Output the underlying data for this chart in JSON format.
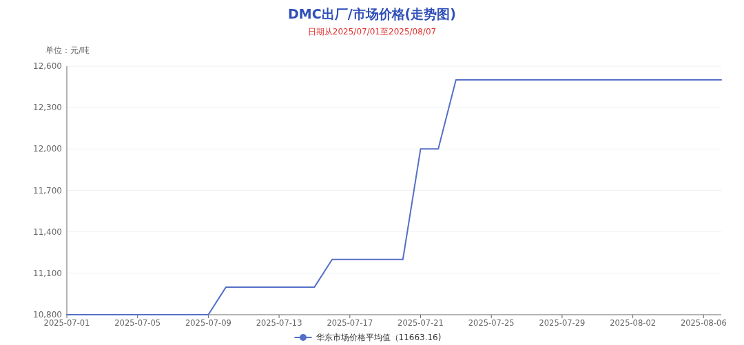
{
  "chart_data": {
    "type": "line",
    "title": "DMC出厂/市场价格(走势图)",
    "subtitle": "日期从2025/07/01至2025/08/07",
    "ylabel": "单位：元/吨",
    "x": [
      "2025-07-01",
      "2025-07-02",
      "2025-07-03",
      "2025-07-04",
      "2025-07-05",
      "2025-07-06",
      "2025-07-07",
      "2025-07-08",
      "2025-07-09",
      "2025-07-10",
      "2025-07-11",
      "2025-07-12",
      "2025-07-13",
      "2025-07-14",
      "2025-07-15",
      "2025-07-16",
      "2025-07-17",
      "2025-07-18",
      "2025-07-19",
      "2025-07-20",
      "2025-07-21",
      "2025-07-22",
      "2025-07-23",
      "2025-07-24",
      "2025-07-25",
      "2025-07-26",
      "2025-07-27",
      "2025-07-28",
      "2025-07-29",
      "2025-07-30",
      "2025-07-31",
      "2025-08-01",
      "2025-08-02",
      "2025-08-03",
      "2025-08-04",
      "2025-08-05",
      "2025-08-06",
      "2025-08-07"
    ],
    "series": [
      {
        "name": "华东市场价格平均值（11663.16)",
        "color": "#5470c6",
        "values": [
          10800,
          10800,
          10800,
          10800,
          10800,
          10800,
          10800,
          10800,
          10800,
          11000,
          11000,
          11000,
          11000,
          11000,
          11000,
          11200,
          11200,
          11200,
          11200,
          11200,
          12000,
          12000,
          12500,
          12500,
          12500,
          12500,
          12500,
          12500,
          12500,
          12500,
          12500,
          12500,
          12500,
          12500,
          12500,
          12500,
          12500,
          12500
        ]
      }
    ],
    "xlim": [
      "2025-07-01",
      "2025-08-07"
    ],
    "xticks": [
      "2025-07-01",
      "2025-07-05",
      "2025-07-09",
      "2025-07-13",
      "2025-07-17",
      "2025-07-21",
      "2025-07-25",
      "2025-07-29",
      "2025-08-02",
      "2025-08-06"
    ],
    "ylim": [
      10800,
      12600
    ],
    "yticks": [
      {
        "value": 10800,
        "label": "10,800"
      },
      {
        "value": 11100,
        "label": "11,100"
      },
      {
        "value": 11400,
        "label": "11,400"
      },
      {
        "value": 11700,
        "label": "11,700"
      },
      {
        "value": 12000,
        "label": "12,000"
      },
      {
        "value": 12300,
        "label": "12,300"
      },
      {
        "value": 12600,
        "label": "12,600"
      }
    ],
    "grid": "y",
    "legend": "bottom"
  }
}
